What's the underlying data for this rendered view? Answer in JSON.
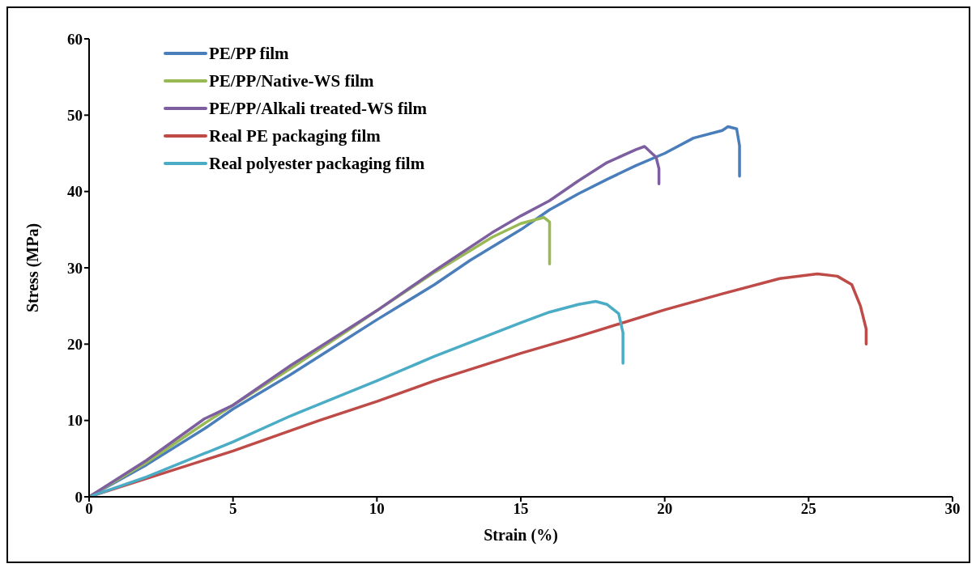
{
  "chart_data": {
    "type": "line",
    "xlabel": "Strain (%)",
    "ylabel": "Stress (MPa)",
    "xlim": [
      0,
      30
    ],
    "xticks": [
      0,
      5,
      10,
      15,
      20,
      25,
      30
    ],
    "ylim": [
      0,
      60
    ],
    "yticks": [
      0,
      10,
      20,
      30,
      40,
      50,
      60
    ],
    "grid": false,
    "legend": "top left",
    "marker": "none",
    "line_style": "solid",
    "series": [
      {
        "name": "PE/PP film",
        "color": "#4a7ebb",
        "x": [
          0,
          2,
          4,
          5,
          7,
          9,
          10,
          12,
          13.25,
          15,
          16,
          17,
          18,
          19,
          20,
          21,
          22,
          22.2,
          22.5,
          22.6,
          22.6
        ],
        "values": [
          0,
          4.2,
          8.9,
          11.5,
          16,
          20.8,
          23.2,
          27.8,
          31,
          35,
          37.6,
          39.7,
          41.6,
          43.4,
          45,
          47,
          48,
          48.5,
          48.2,
          46,
          42
        ]
      },
      {
        "name": "PE/PP/Native-WS film",
        "color": "#98b954",
        "x": [
          0,
          2,
          4,
          5,
          7,
          9,
          10,
          12,
          14,
          15,
          15.8,
          16,
          16,
          16
        ],
        "values": [
          0,
          4.5,
          9.6,
          12,
          16.8,
          21.8,
          24.4,
          29.4,
          34,
          35.8,
          36.6,
          36,
          33,
          30.5
        ]
      },
      {
        "name": "PE/PP/Alkali treated-WS film",
        "color": "#7d5fa0",
        "x": [
          0,
          2,
          4,
          5,
          7,
          9,
          10,
          12,
          14,
          15,
          16,
          17,
          18,
          19,
          19.3,
          19.7,
          19.8,
          19.8
        ],
        "values": [
          0,
          4.8,
          10.2,
          12,
          17.2,
          22,
          24.4,
          29.6,
          34.6,
          36.8,
          38.8,
          41.4,
          43.8,
          45.5,
          45.9,
          44.5,
          43,
          41
        ]
      },
      {
        "name": "Real PE packaging film",
        "color": "#be4b48",
        "x": [
          0,
          2,
          5,
          8,
          10,
          12,
          15,
          17,
          20,
          22,
          24,
          25.3,
          26,
          26.5,
          26.8,
          27,
          27
        ],
        "values": [
          0,
          2.4,
          6,
          10,
          12.5,
          15.2,
          18.8,
          21,
          24.5,
          26.6,
          28.6,
          29.2,
          28.9,
          27.8,
          25,
          22,
          20
        ]
      },
      {
        "name": "Real polyester packaging film",
        "color": "#4bacc6",
        "x": [
          0,
          2,
          5,
          7,
          10,
          12,
          15,
          16,
          17,
          17.6,
          18,
          18.4,
          18.55,
          18.55
        ],
        "values": [
          0,
          2.6,
          7.2,
          10.6,
          15.2,
          18.4,
          22.8,
          24.2,
          25.2,
          25.6,
          25.2,
          24,
          21.5,
          17.5
        ]
      }
    ]
  }
}
